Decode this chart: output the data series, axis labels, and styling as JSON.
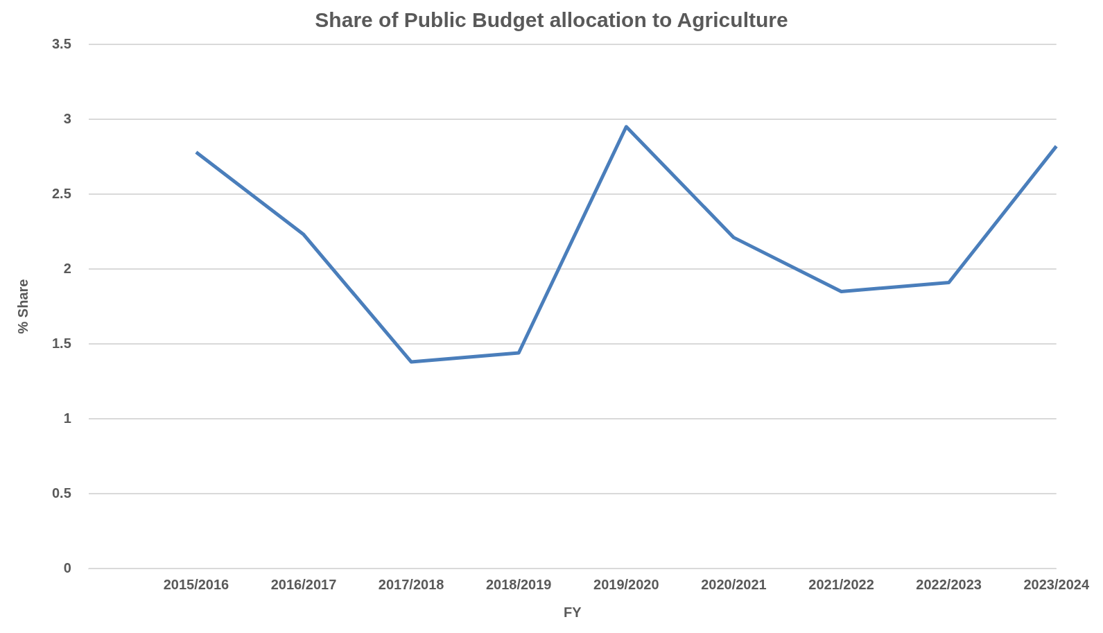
{
  "chart_data": {
    "type": "line",
    "title": "Share of Public Budget allocation to Agriculture",
    "xlabel": "FY",
    "ylabel": "% Share",
    "categories": [
      null,
      "2015/2016",
      "2016/2017",
      "2017/2018",
      "2018/2019",
      "2019/2020",
      "2020/2021",
      "2021/2022",
      "2022/2023",
      "2023/2024"
    ],
    "series": [
      {
        "color": "#4a7ebb",
        "values": [
          null,
          2.78,
          2.23,
          1.38,
          1.44,
          2.95,
          2.21,
          1.85,
          1.91,
          2.82
        ]
      }
    ],
    "ylim": [
      0,
      3.5
    ],
    "yticks": [
      0,
      0.5,
      1,
      1.5,
      2,
      2.5,
      3,
      3.5
    ],
    "grid": "y",
    "legend": false,
    "marker": "none",
    "line_style": "solid"
  }
}
